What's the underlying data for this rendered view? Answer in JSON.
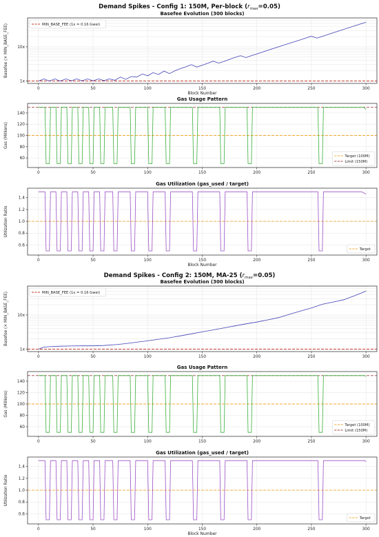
{
  "figures": [
    {
      "suptitle_prefix": "Demand Spikes - Config 1: 150M, Per-block (",
      "suptitle_var": "r",
      "suptitle_sub": "max",
      "suptitle_suffix": "=0.05)"
    },
    {
      "suptitle_prefix": "Demand Spikes - Config 2: 150M, MA-25 (",
      "suptitle_var": "r",
      "suptitle_sub": "max",
      "suptitle_suffix": "=0.05)"
    }
  ],
  "colors": {
    "basefee": "#3f3fb5",
    "min_base_fee": "#c0392b",
    "gas": "#3cae3c",
    "target": "#f0a830",
    "limit": "#a04040",
    "utilization": "#9a4fc4",
    "grid": "#e3e3e3"
  },
  "chart_data": [
    {
      "type": "line",
      "title": "Basefee Evolution (300 blocks)",
      "xlabel": "Block Number",
      "ylabel": "Basefee (× MIN_BASE_FEE)",
      "yscale": "log",
      "xlim": [
        -10,
        310
      ],
      "ylim": [
        0.85,
        70
      ],
      "xticks": [
        0,
        50,
        100,
        150,
        200,
        250,
        300
      ],
      "yticks": [
        {
          "value": 1,
          "label": "1x"
        },
        {
          "value": 10,
          "label": "10x"
        }
      ],
      "grid": true,
      "legend": "upper-left",
      "hlines": [
        {
          "name": "MIN_BASE_FEE (1x = 0.16 Gwei)",
          "value": 1,
          "style": "dashed",
          "color": "#c0392b"
        }
      ],
      "series": [
        {
          "color": "#3f3fb5",
          "x": [
            0,
            5,
            10,
            15,
            20,
            25,
            30,
            35,
            40,
            45,
            50,
            55,
            60,
            65,
            70,
            75,
            80,
            85,
            90,
            95,
            100,
            105,
            110,
            115,
            120,
            125,
            130,
            135,
            140,
            145,
            150,
            155,
            160,
            165,
            170,
            175,
            180,
            185,
            190,
            195,
            200,
            205,
            210,
            215,
            220,
            225,
            230,
            235,
            240,
            245,
            250,
            255,
            260,
            265,
            270,
            275,
            280,
            285,
            290,
            295,
            300
          ],
          "y": [
            1.0,
            1.15,
            1.0,
            1.15,
            1.0,
            1.15,
            1.02,
            1.15,
            1.02,
            1.15,
            1.02,
            1.15,
            1.03,
            1.15,
            1.05,
            1.3,
            1.12,
            1.35,
            1.3,
            1.6,
            1.42,
            1.75,
            1.55,
            1.95,
            1.65,
            2.0,
            2.3,
            2.6,
            3.0,
            2.55,
            2.9,
            3.3,
            3.8,
            3.35,
            3.75,
            4.3,
            4.9,
            5.5,
            4.85,
            5.5,
            6.2,
            7.0,
            7.9,
            8.9,
            10.0,
            11.3,
            12.7,
            14.3,
            16.1,
            18.1,
            20.4,
            18.0,
            20.3,
            22.9,
            25.8,
            29.0,
            32.7,
            36.8,
            41.4,
            46.6,
            52.0
          ]
        }
      ]
    },
    {
      "type": "line",
      "title": "Gas Usage Pattern",
      "xlabel": "",
      "ylabel": "Gas (Millions)",
      "xlim": [
        -10,
        310
      ],
      "ylim": [
        43,
        157
      ],
      "xticks": [
        0,
        50,
        100,
        150,
        200,
        250,
        300
      ],
      "yticks": [
        {
          "value": 60,
          "label": "60"
        },
        {
          "value": 80,
          "label": "80"
        },
        {
          "value": 100,
          "label": "100"
        },
        {
          "value": 120,
          "label": "120"
        },
        {
          "value": 140,
          "label": "140"
        }
      ],
      "grid": true,
      "legend": "lower-right",
      "hlines": [
        {
          "name": "Target (100M)",
          "value": 100,
          "style": "dashed",
          "color": "#f0a830"
        },
        {
          "name": "Limit (150M)",
          "value": 150,
          "style": "dashed",
          "color": "#a04040"
        }
      ],
      "series": [
        {
          "color": "#3cae3c",
          "high": 150,
          "low": 50,
          "tail": [
            [
              299,
              148
            ],
            [
              300,
              146
            ]
          ],
          "drops": [
            [
              6,
              11
            ],
            [
              16,
              21
            ],
            [
              26,
              31
            ],
            [
              36,
              41
            ],
            [
              46,
              51
            ],
            [
              56,
              61
            ],
            [
              68,
              73
            ],
            [
              84,
              89
            ],
            [
              100,
              105
            ],
            [
              116,
              121
            ],
            [
              141,
              146
            ],
            [
              166,
              171
            ],
            [
              191,
              196
            ],
            [
              256,
              261
            ]
          ]
        }
      ]
    },
    {
      "type": "line",
      "title": "Gas Utilization (gas_used / target)",
      "xlabel": "Block Number",
      "ylabel": "Utilization Ratio",
      "xlim": [
        -10,
        310
      ],
      "ylim": [
        0.43,
        1.56
      ],
      "xticks": [
        0,
        50,
        100,
        150,
        200,
        250,
        300
      ],
      "yticks": [
        {
          "value": 0.6,
          "label": "0.6"
        },
        {
          "value": 0.8,
          "label": "0.8"
        },
        {
          "value": 1.0,
          "label": "1.0"
        },
        {
          "value": 1.2,
          "label": "1.2"
        },
        {
          "value": 1.4,
          "label": "1.4"
        }
      ],
      "grid": true,
      "legend": "lower-right",
      "hlines": [
        {
          "name": "Target",
          "value": 1.0,
          "style": "dashed",
          "color": "#f0a830"
        }
      ],
      "series": [
        {
          "color": "#9a4fc4",
          "high": 1.5,
          "low": 0.5,
          "tail": [
            [
              297,
              1.49
            ],
            [
              299,
              1.47
            ],
            [
              300,
              1.46
            ]
          ],
          "drops": [
            [
              6,
              11
            ],
            [
              16,
              21
            ],
            [
              26,
              31
            ],
            [
              36,
              41
            ],
            [
              46,
              51
            ],
            [
              56,
              61
            ],
            [
              68,
              73
            ],
            [
              84,
              89
            ],
            [
              100,
              105
            ],
            [
              116,
              121
            ],
            [
              141,
              146
            ],
            [
              166,
              171
            ],
            [
              191,
              196
            ],
            [
              256,
              261
            ]
          ]
        }
      ]
    },
    {
      "type": "line",
      "title": "Basefee Evolution (300 blocks)",
      "xlabel": "",
      "ylabel": "Basefee (× MIN_BASE_FEE)",
      "yscale": "log",
      "xlim": [
        -10,
        310
      ],
      "ylim": [
        0.85,
        70
      ],
      "xticks": [
        0,
        50,
        100,
        150,
        200,
        250,
        300
      ],
      "yticks": [
        {
          "value": 1,
          "label": "1x"
        },
        {
          "value": 10,
          "label": "10x"
        }
      ],
      "grid": true,
      "legend": "upper-left",
      "hlines": [
        {
          "name": "MIN_BASE_FEE (1x = 0.16 Gwei)",
          "value": 1,
          "style": "dashed",
          "color": "#c0392b"
        }
      ],
      "series": [
        {
          "color": "#3f3fb5",
          "x": [
            0,
            5,
            10,
            20,
            30,
            40,
            50,
            60,
            70,
            80,
            90,
            100,
            110,
            120,
            130,
            140,
            150,
            160,
            170,
            180,
            190,
            200,
            210,
            220,
            230,
            240,
            250,
            260,
            270,
            280,
            290,
            300
          ],
          "y": [
            1.0,
            1.15,
            1.18,
            1.22,
            1.24,
            1.25,
            1.25,
            1.28,
            1.35,
            1.45,
            1.6,
            1.75,
            1.95,
            2.15,
            2.45,
            2.8,
            3.2,
            3.65,
            4.2,
            4.8,
            5.5,
            6.2,
            7.2,
            8.4,
            10.5,
            13.0,
            16.0,
            20.5,
            24.0,
            28.0,
            37.0,
            50.0
          ]
        }
      ]
    },
    {
      "type": "line",
      "title": "Gas Usage Pattern",
      "xlabel": "",
      "ylabel": "Gas (Millions)",
      "xlim": [
        -10,
        310
      ],
      "ylim": [
        43,
        157
      ],
      "xticks": [
        0,
        50,
        100,
        150,
        200,
        250,
        300
      ],
      "yticks": [
        {
          "value": 60,
          "label": "60"
        },
        {
          "value": 80,
          "label": "80"
        },
        {
          "value": 100,
          "label": "100"
        },
        {
          "value": 120,
          "label": "120"
        },
        {
          "value": 140,
          "label": "140"
        }
      ],
      "grid": true,
      "legend": "lower-right",
      "hlines": [
        {
          "name": "Target (100M)",
          "value": 100,
          "style": "dashed",
          "color": "#f0a830"
        },
        {
          "name": "Limit (150M)",
          "value": 150,
          "style": "dashed",
          "color": "#a04040"
        }
      ],
      "series": [
        {
          "color": "#3cae3c",
          "high": 150,
          "low": 50,
          "tail": [
            [
              300,
              148
            ]
          ],
          "drops": [
            [
              6,
              11
            ],
            [
              16,
              21
            ],
            [
              26,
              31
            ],
            [
              36,
              41
            ],
            [
              46,
              51
            ],
            [
              56,
              61
            ],
            [
              68,
              73
            ],
            [
              84,
              89
            ],
            [
              100,
              105
            ],
            [
              116,
              121
            ],
            [
              141,
              146
            ],
            [
              166,
              171
            ],
            [
              191,
              196
            ],
            [
              256,
              261
            ]
          ]
        }
      ]
    },
    {
      "type": "line",
      "title": "Gas Utilization (gas_used / target)",
      "xlabel": "Block Number",
      "ylabel": "Utilization Ratio",
      "xlim": [
        -10,
        310
      ],
      "ylim": [
        0.43,
        1.56
      ],
      "xticks": [
        0,
        50,
        100,
        150,
        200,
        250,
        300
      ],
      "yticks": [
        {
          "value": 0.6,
          "label": "0.6"
        },
        {
          "value": 0.8,
          "label": "0.8"
        },
        {
          "value": 1.0,
          "label": "1.0"
        },
        {
          "value": 1.2,
          "label": "1.2"
        },
        {
          "value": 1.4,
          "label": "1.4"
        }
      ],
      "grid": true,
      "legend": "lower-right",
      "hlines": [
        {
          "name": "Target",
          "value": 1.0,
          "style": "dashed",
          "color": "#f0a830"
        }
      ],
      "series": [
        {
          "color": "#9a4fc4",
          "high": 1.5,
          "low": 0.5,
          "tail": [
            [
              300,
              1.48
            ]
          ],
          "drops": [
            [
              6,
              11
            ],
            [
              16,
              21
            ],
            [
              26,
              31
            ],
            [
              36,
              41
            ],
            [
              46,
              51
            ],
            [
              56,
              61
            ],
            [
              68,
              73
            ],
            [
              84,
              89
            ],
            [
              100,
              105
            ],
            [
              116,
              121
            ],
            [
              141,
              146
            ],
            [
              166,
              171
            ],
            [
              191,
              196
            ],
            [
              256,
              261
            ]
          ]
        }
      ]
    }
  ]
}
